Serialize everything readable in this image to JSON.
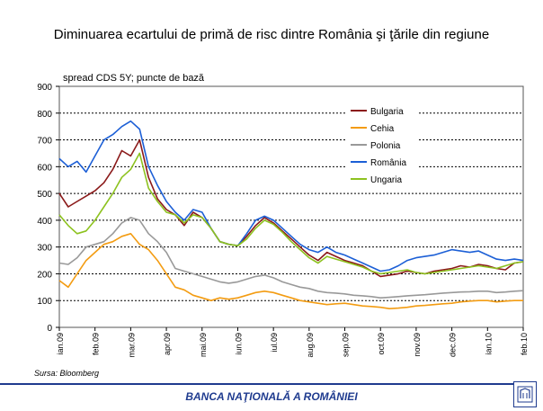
{
  "title": "Diminuarea ecartului de primă de risc dintre România şi ţările din regiune",
  "chart_data": {
    "type": "line",
    "title": "Diminuarea ecartului de primă de risc dintre România şi ţările din regiune",
    "ylabel": "spread CDS 5Y; puncte de bază",
    "xlabel": "",
    "ylim": [
      0,
      900
    ],
    "yticks": [
      0,
      100,
      200,
      300,
      400,
      500,
      600,
      700,
      800,
      900
    ],
    "xlim": [
      0,
      13
    ],
    "x_tick_labels": [
      "ian.09",
      "feb.09",
      "mar.09",
      "apr.09",
      "mai.09",
      "iun.09",
      "iul.09",
      "aug.09",
      "sep.09",
      "oct.09",
      "nov.09",
      "dec.09",
      "ian.10",
      "feb.10"
    ],
    "grid": "horizontal dotted",
    "legend_position": "top-right",
    "series": [
      {
        "name": "Bulgaria",
        "color": "#8b1a1a",
        "x": [
          0,
          0.25,
          0.5,
          0.75,
          1.0,
          1.25,
          1.5,
          1.75,
          2.0,
          2.25,
          2.5,
          2.75,
          3.0,
          3.25,
          3.5,
          3.75,
          4.0,
          4.25,
          4.5,
          4.75,
          5.0,
          5.25,
          5.5,
          5.75,
          6.0,
          6.25,
          6.5,
          6.75,
          7.0,
          7.25,
          7.5,
          7.75,
          8.0,
          8.25,
          8.5,
          8.75,
          9.0,
          9.25,
          9.5,
          9.75,
          10.0,
          10.25,
          10.5,
          10.75,
          11.0,
          11.25,
          11.5,
          11.75,
          12.0,
          12.25,
          12.5,
          12.75,
          13.0
        ],
        "y": [
          500,
          450,
          470,
          490,
          510,
          540,
          590,
          660,
          640,
          700,
          560,
          480,
          440,
          420,
          380,
          430,
          410,
          370,
          320,
          310,
          305,
          340,
          380,
          410,
          390,
          360,
          330,
          300,
          270,
          250,
          280,
          265,
          250,
          240,
          230,
          210,
          190,
          195,
          200,
          210,
          205,
          200,
          210,
          215,
          220,
          230,
          225,
          235,
          230,
          220,
          215,
          240,
          245
        ]
      },
      {
        "name": "Cehia",
        "color": "#f39c12",
        "x": [
          0,
          0.25,
          0.5,
          0.75,
          1.0,
          1.25,
          1.5,
          1.75,
          2.0,
          2.25,
          2.5,
          2.75,
          3.0,
          3.25,
          3.5,
          3.75,
          4.0,
          4.25,
          4.5,
          4.75,
          5.0,
          5.25,
          5.5,
          5.75,
          6.0,
          6.25,
          6.5,
          6.75,
          7.0,
          7.25,
          7.5,
          7.75,
          8.0,
          8.25,
          8.5,
          8.75,
          9.0,
          9.25,
          9.5,
          9.75,
          10.0,
          10.25,
          10.5,
          10.75,
          11.0,
          11.25,
          11.5,
          11.75,
          12.0,
          12.25,
          12.5,
          12.75,
          13.0
        ],
        "y": [
          175,
          150,
          200,
          250,
          280,
          310,
          320,
          340,
          350,
          310,
          290,
          250,
          200,
          150,
          140,
          120,
          110,
          100,
          110,
          105,
          110,
          120,
          130,
          135,
          130,
          120,
          110,
          100,
          95,
          90,
          85,
          88,
          90,
          85,
          80,
          78,
          75,
          70,
          72,
          75,
          80,
          82,
          85,
          88,
          90,
          95,
          98,
          100,
          100,
          95,
          98,
          100,
          100
        ]
      },
      {
        "name": "Polonia",
        "color": "#999999",
        "x": [
          0,
          0.25,
          0.5,
          0.75,
          1.0,
          1.25,
          1.5,
          1.75,
          2.0,
          2.25,
          2.5,
          2.75,
          3.0,
          3.25,
          3.5,
          3.75,
          4.0,
          4.25,
          4.5,
          4.75,
          5.0,
          5.25,
          5.5,
          5.75,
          6.0,
          6.25,
          6.5,
          6.75,
          7.0,
          7.25,
          7.5,
          7.75,
          8.0,
          8.25,
          8.5,
          8.75,
          9.0,
          9.25,
          9.5,
          9.75,
          10.0,
          10.25,
          10.5,
          10.75,
          11.0,
          11.25,
          11.5,
          11.75,
          12.0,
          12.25,
          12.5,
          12.75,
          13.0
        ],
        "y": [
          240,
          235,
          260,
          300,
          310,
          320,
          350,
          390,
          410,
          400,
          350,
          320,
          280,
          220,
          210,
          200,
          190,
          180,
          170,
          165,
          170,
          180,
          190,
          195,
          185,
          170,
          160,
          150,
          145,
          135,
          130,
          128,
          125,
          120,
          118,
          115,
          110,
          112,
          115,
          118,
          120,
          122,
          125,
          128,
          130,
          132,
          133,
          135,
          135,
          130,
          132,
          135,
          137
        ]
      },
      {
        "name": "România",
        "color": "#1c5fd6",
        "x": [
          0,
          0.25,
          0.5,
          0.75,
          1.0,
          1.25,
          1.5,
          1.75,
          2.0,
          2.25,
          2.5,
          2.75,
          3.0,
          3.25,
          3.5,
          3.75,
          4.0,
          4.25,
          4.5,
          4.75,
          5.0,
          5.25,
          5.5,
          5.75,
          6.0,
          6.25,
          6.5,
          6.75,
          7.0,
          7.25,
          7.5,
          7.75,
          8.0,
          8.25,
          8.5,
          8.75,
          9.0,
          9.25,
          9.5,
          9.75,
          10.0,
          10.25,
          10.5,
          10.75,
          11.0,
          11.25,
          11.5,
          11.75,
          12.0,
          12.25,
          12.5,
          12.75,
          13.0
        ],
        "y": [
          630,
          600,
          620,
          580,
          640,
          700,
          720,
          750,
          770,
          740,
          600,
          530,
          470,
          430,
          400,
          440,
          430,
          370,
          320,
          310,
          305,
          350,
          400,
          415,
          400,
          370,
          340,
          310,
          290,
          280,
          300,
          280,
          270,
          255,
          240,
          225,
          210,
          215,
          230,
          250,
          260,
          265,
          270,
          280,
          290,
          285,
          280,
          285,
          270,
          255,
          250,
          255,
          250
        ]
      },
      {
        "name": "Ungaria",
        "color": "#8dc21f",
        "x": [
          0,
          0.25,
          0.5,
          0.75,
          1.0,
          1.25,
          1.5,
          1.75,
          2.0,
          2.25,
          2.5,
          2.75,
          3.0,
          3.25,
          3.5,
          3.75,
          4.0,
          4.25,
          4.5,
          4.75,
          5.0,
          5.25,
          5.5,
          5.75,
          6.0,
          6.25,
          6.5,
          6.75,
          7.0,
          7.25,
          7.5,
          7.75,
          8.0,
          8.25,
          8.5,
          8.75,
          9.0,
          9.25,
          9.5,
          9.75,
          10.0,
          10.25,
          10.5,
          10.75,
          11.0,
          11.25,
          11.5,
          11.75,
          12.0,
          12.25,
          12.5,
          12.75,
          13.0
        ],
        "y": [
          420,
          380,
          350,
          360,
          400,
          450,
          500,
          560,
          590,
          650,
          520,
          470,
          430,
          420,
          390,
          420,
          410,
          370,
          320,
          310,
          305,
          330,
          370,
          400,
          385,
          355,
          320,
          290,
          260,
          240,
          265,
          255,
          245,
          235,
          225,
          210,
          200,
          205,
          210,
          215,
          205,
          200,
          205,
          210,
          215,
          220,
          225,
          230,
          225,
          220,
          230,
          240,
          245
        ]
      }
    ]
  },
  "source": "Sursa: Bloomberg",
  "footer": {
    "institution": "BANCA NAŢIONALĂ A ROMÂNIEI"
  }
}
